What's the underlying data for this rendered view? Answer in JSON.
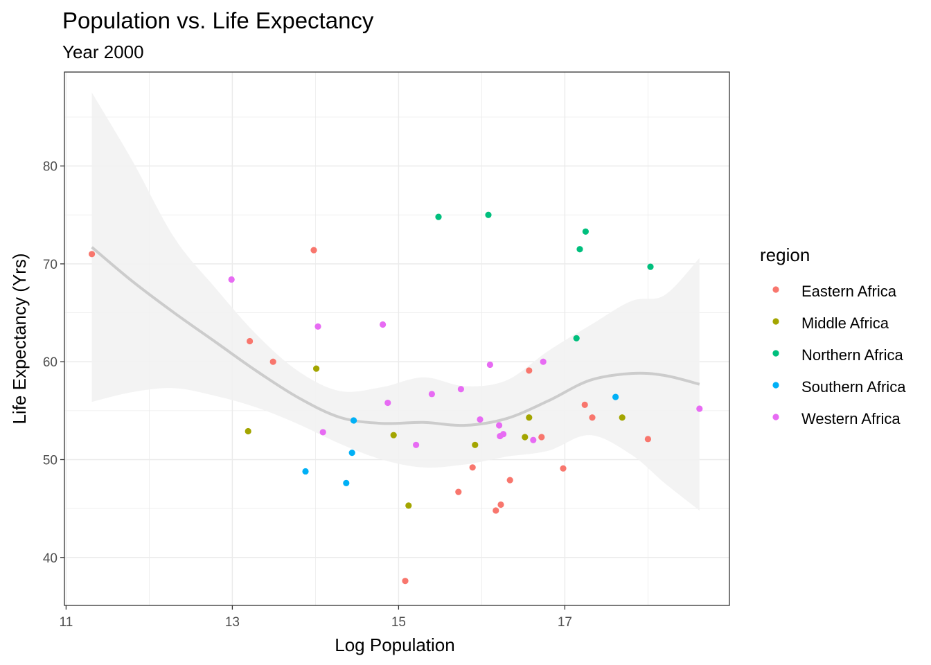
{
  "chart_data": {
    "type": "scatter",
    "title": "Population vs. Life Expectancy",
    "subtitle": "Year 2000",
    "xlabel": "Log Population",
    "ylabel": "Life Expectancy (Yrs)",
    "xlim": [
      10.98,
      18.98
    ],
    "ylim": [
      35.1,
      89.6
    ],
    "x_ticks": [
      11,
      13,
      15,
      17
    ],
    "y_ticks": [
      40,
      50,
      60,
      70,
      80
    ],
    "grid": true,
    "legend": {
      "title": "region",
      "position": "right"
    },
    "series": [
      {
        "name": "Eastern Africa",
        "color": "#F8766D",
        "points": [
          {
            "x": 11.31,
            "y": 71.0
          },
          {
            "x": 13.21,
            "y": 62.1
          },
          {
            "x": 13.49,
            "y": 60.0
          },
          {
            "x": 13.98,
            "y": 71.4
          },
          {
            "x": 15.08,
            "y": 37.6
          },
          {
            "x": 15.72,
            "y": 46.7
          },
          {
            "x": 15.89,
            "y": 49.2
          },
          {
            "x": 16.17,
            "y": 44.8
          },
          {
            "x": 16.23,
            "y": 45.4
          },
          {
            "x": 16.34,
            "y": 47.9
          },
          {
            "x": 16.57,
            "y": 59.1
          },
          {
            "x": 16.72,
            "y": 52.3
          },
          {
            "x": 16.98,
            "y": 49.1
          },
          {
            "x": 17.24,
            "y": 55.6
          },
          {
            "x": 17.33,
            "y": 54.3
          },
          {
            "x": 18.0,
            "y": 52.1
          }
        ]
      },
      {
        "name": "Middle Africa",
        "color": "#A3A500",
        "points": [
          {
            "x": 13.19,
            "y": 52.9
          },
          {
            "x": 14.01,
            "y": 59.3
          },
          {
            "x": 14.94,
            "y": 52.5
          },
          {
            "x": 15.12,
            "y": 45.3
          },
          {
            "x": 15.92,
            "y": 51.5
          },
          {
            "x": 16.52,
            "y": 52.3
          },
          {
            "x": 16.57,
            "y": 54.3
          },
          {
            "x": 17.69,
            "y": 54.3
          }
        ]
      },
      {
        "name": "Northern Africa",
        "color": "#00BF7D",
        "points": [
          {
            "x": 15.48,
            "y": 74.8
          },
          {
            "x": 16.08,
            "y": 75.0
          },
          {
            "x": 17.14,
            "y": 62.4
          },
          {
            "x": 17.18,
            "y": 71.5
          },
          {
            "x": 17.25,
            "y": 73.3
          },
          {
            "x": 18.03,
            "y": 69.7
          }
        ]
      },
      {
        "name": "Southern Africa",
        "color": "#00B0F6",
        "points": [
          {
            "x": 13.88,
            "y": 48.8
          },
          {
            "x": 14.37,
            "y": 47.6
          },
          {
            "x": 14.44,
            "y": 50.7
          },
          {
            "x": 14.46,
            "y": 54.0
          },
          {
            "x": 17.61,
            "y": 56.4
          }
        ]
      },
      {
        "name": "Western Africa",
        "color": "#E76BF3",
        "points": [
          {
            "x": 12.99,
            "y": 68.4
          },
          {
            "x": 14.03,
            "y": 63.6
          },
          {
            "x": 14.09,
            "y": 52.8
          },
          {
            "x": 14.81,
            "y": 63.8
          },
          {
            "x": 14.87,
            "y": 55.8
          },
          {
            "x": 15.21,
            "y": 51.5
          },
          {
            "x": 15.4,
            "y": 56.7
          },
          {
            "x": 15.75,
            "y": 57.2
          },
          {
            "x": 15.98,
            "y": 54.1
          },
          {
            "x": 16.1,
            "y": 59.7
          },
          {
            "x": 16.21,
            "y": 53.5
          },
          {
            "x": 16.22,
            "y": 52.4
          },
          {
            "x": 16.26,
            "y": 52.6
          },
          {
            "x": 16.62,
            "y": 52.0
          },
          {
            "x": 16.74,
            "y": 60.0
          },
          {
            "x": 18.62,
            "y": 55.2
          }
        ]
      }
    ],
    "smooth": {
      "color": "#cccccc",
      "band_color": "#f2f2f2",
      "x": [
        11.31,
        11.8,
        12.3,
        12.8,
        13.3,
        13.8,
        14.3,
        14.8,
        15.3,
        15.8,
        16.3,
        16.8,
        17.3,
        17.8,
        18.2,
        18.62
      ],
      "y": [
        71.7,
        68.2,
        65.0,
        62.0,
        59.0,
        56.3,
        54.3,
        53.7,
        53.8,
        53.5,
        54.2,
        56.0,
        58.1,
        58.8,
        58.6,
        57.7
      ],
      "lower": [
        55.9,
        56.9,
        57.3,
        56.5,
        55.3,
        53.6,
        51.6,
        50.0,
        49.2,
        49.5,
        50.3,
        50.9,
        52.5,
        50.5,
        47.6,
        44.8
      ],
      "upper": [
        87.5,
        80.5,
        72.7,
        67.5,
        62.7,
        59.0,
        57.0,
        57.4,
        58.4,
        57.5,
        58.1,
        61.1,
        63.7,
        66.2,
        66.8,
        70.6
      ]
    }
  }
}
